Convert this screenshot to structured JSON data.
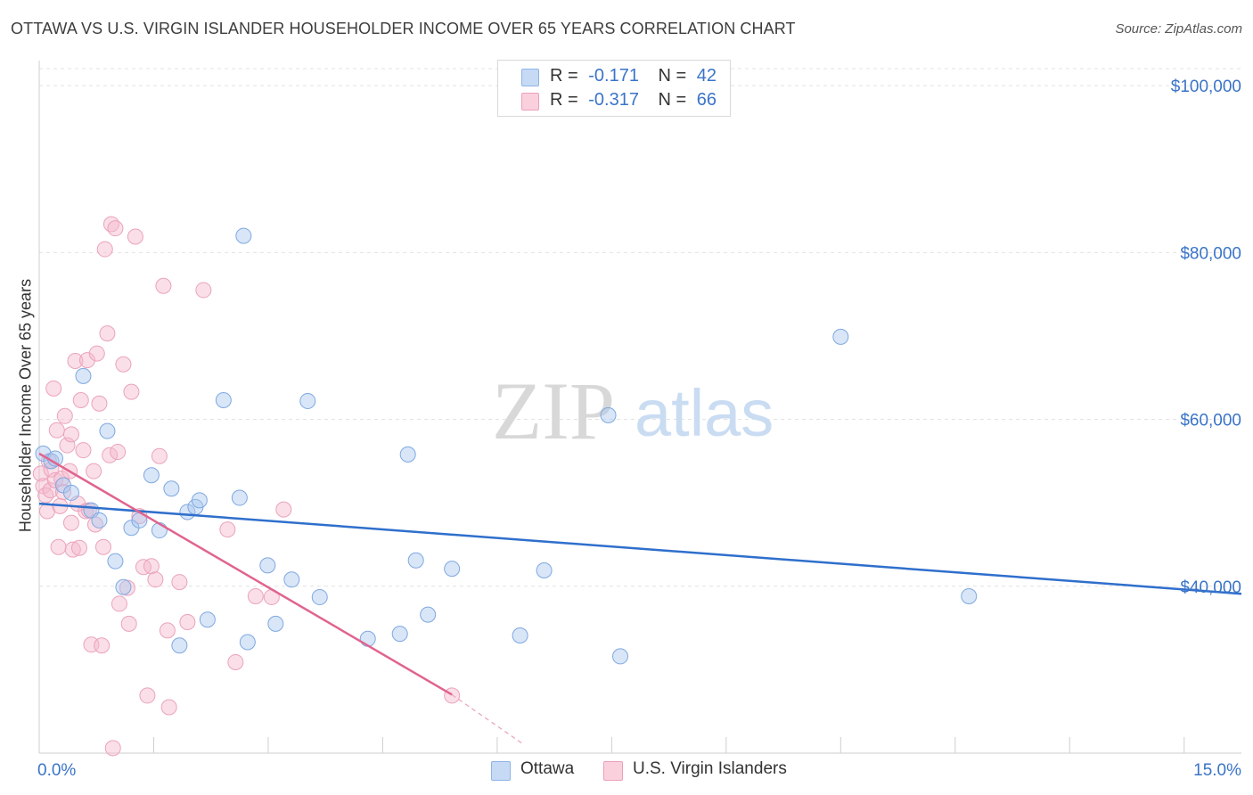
{
  "title": "OTTAWA VS U.S. VIRGIN ISLANDER HOUSEHOLDER INCOME OVER 65 YEARS CORRELATION CHART",
  "source": "Source: ZipAtlas.com",
  "watermark": {
    "zip": "ZIP",
    "atlas": "atlas"
  },
  "legend": {
    "rows": [
      {
        "r_label": "R =",
        "r_value": "-0.171",
        "n_label": "N =",
        "n_value": "42",
        "color": "#a8c8f0"
      },
      {
        "r_label": "R =",
        "r_value": "-0.317",
        "n_label": "N =",
        "n_value": "66",
        "color": "#f5b8cc"
      }
    ]
  },
  "bottom_legend": [
    {
      "label": "Ottawa",
      "color": "#a8c8f0"
    },
    {
      "label": "U.S. Virgin Islanders",
      "color": "#f5b8cc"
    }
  ],
  "chart_data": {
    "type": "scatter",
    "title": "OTTAWA VS U.S. VIRGIN ISLANDER HOUSEHOLDER INCOME OVER 65 YEARS CORRELATION CHART",
    "xlabel": "",
    "ylabel": "Householder Income Over 65 years",
    "xlim": [
      0,
      15
    ],
    "ylim": [
      20000,
      103000
    ],
    "x_tick_labels": [
      "0.0%",
      "15.0%"
    ],
    "y_ticks": [
      40000,
      60000,
      80000,
      100000
    ],
    "y_tick_labels": [
      "$40,000",
      "$60,000",
      "$80,000",
      "$100,000"
    ],
    "grid": true,
    "colors": {
      "ottawa": "#a8c8f0",
      "ottawa_line": "#2f6fcc",
      "virgin": "#f5b8cc",
      "virgin_line": "#e0648f"
    },
    "series": [
      {
        "name": "Ottawa",
        "r": -0.171,
        "n": 42,
        "trend": {
          "x0": 0.0,
          "y0": 49900,
          "x1": 15.0,
          "y1": 39100
        },
        "points": [
          [
            0.05,
            55900
          ],
          [
            0.15,
            55000
          ],
          [
            0.2,
            55300
          ],
          [
            0.3,
            52100
          ],
          [
            0.4,
            51200
          ],
          [
            0.55,
            65200
          ],
          [
            0.65,
            49100
          ],
          [
            0.75,
            47900
          ],
          [
            0.85,
            58600
          ],
          [
            0.95,
            43000
          ],
          [
            1.05,
            39900
          ],
          [
            1.15,
            47000
          ],
          [
            1.25,
            47900
          ],
          [
            1.4,
            53300
          ],
          [
            1.5,
            46700
          ],
          [
            1.65,
            51700
          ],
          [
            1.75,
            32900
          ],
          [
            1.85,
            48900
          ],
          [
            1.95,
            49500
          ],
          [
            2.0,
            50300
          ],
          [
            2.1,
            36000
          ],
          [
            2.3,
            62300
          ],
          [
            2.5,
            50600
          ],
          [
            2.55,
            82000
          ],
          [
            2.6,
            33300
          ],
          [
            2.85,
            42500
          ],
          [
            2.95,
            35500
          ],
          [
            3.15,
            40800
          ],
          [
            3.35,
            62200
          ],
          [
            3.5,
            38700
          ],
          [
            4.1,
            33700
          ],
          [
            4.5,
            34300
          ],
          [
            4.6,
            55800
          ],
          [
            4.7,
            43100
          ],
          [
            4.85,
            36600
          ],
          [
            5.15,
            42100
          ],
          [
            6.0,
            34100
          ],
          [
            6.3,
            41900
          ],
          [
            7.1,
            60500
          ],
          [
            7.25,
            31600
          ],
          [
            10.0,
            69900
          ],
          [
            11.6,
            38800
          ]
        ]
      },
      {
        "name": "U.S. Virgin Islanders",
        "r": -0.317,
        "n": 66,
        "trend": {
          "x0": 0.0,
          "y0": 55900,
          "x1": 5.15,
          "y1": 27000
        },
        "trend_dashed": {
          "x0": 5.15,
          "y0": 27000,
          "x1": 6.05,
          "y1": 21000
        },
        "points": [
          [
            0.02,
            53500
          ],
          [
            0.05,
            52000
          ],
          [
            0.08,
            50900
          ],
          [
            0.1,
            49000
          ],
          [
            0.12,
            55000
          ],
          [
            0.14,
            51500
          ],
          [
            0.15,
            54000
          ],
          [
            0.18,
            63700
          ],
          [
            0.2,
            52700
          ],
          [
            0.22,
            58700
          ],
          [
            0.24,
            44700
          ],
          [
            0.26,
            49600
          ],
          [
            0.28,
            52900
          ],
          [
            0.3,
            51300
          ],
          [
            0.32,
            60400
          ],
          [
            0.35,
            56900
          ],
          [
            0.38,
            53800
          ],
          [
            0.4,
            47600
          ],
          [
            0.42,
            44400
          ],
          [
            0.45,
            67000
          ],
          [
            0.48,
            49900
          ],
          [
            0.5,
            44600
          ],
          [
            0.52,
            62300
          ],
          [
            0.55,
            56300
          ],
          [
            0.58,
            49000
          ],
          [
            0.6,
            67100
          ],
          [
            0.62,
            49100
          ],
          [
            0.65,
            33000
          ],
          [
            0.68,
            53800
          ],
          [
            0.7,
            47400
          ],
          [
            0.72,
            67900
          ],
          [
            0.75,
            61900
          ],
          [
            0.78,
            32900
          ],
          [
            0.8,
            44700
          ],
          [
            0.82,
            80400
          ],
          [
            0.85,
            70300
          ],
          [
            0.88,
            55700
          ],
          [
            0.9,
            83400
          ],
          [
            0.92,
            20600
          ],
          [
            0.95,
            82900
          ],
          [
            0.98,
            56100
          ],
          [
            1.0,
            37900
          ],
          [
            1.05,
            66600
          ],
          [
            1.1,
            39800
          ],
          [
            1.12,
            35500
          ],
          [
            1.15,
            63300
          ],
          [
            1.2,
            81900
          ],
          [
            1.25,
            48400
          ],
          [
            1.3,
            42300
          ],
          [
            1.35,
            26900
          ],
          [
            1.4,
            42400
          ],
          [
            1.45,
            40800
          ],
          [
            1.5,
            55600
          ],
          [
            1.55,
            76000
          ],
          [
            1.6,
            34700
          ],
          [
            1.62,
            25500
          ],
          [
            1.75,
            40500
          ],
          [
            1.85,
            35700
          ],
          [
            2.05,
            75500
          ],
          [
            2.35,
            46800
          ],
          [
            2.45,
            30900
          ],
          [
            2.7,
            38800
          ],
          [
            2.9,
            38700
          ],
          [
            3.05,
            49200
          ],
          [
            5.15,
            26900
          ],
          [
            0.4,
            58200
          ]
        ]
      }
    ]
  }
}
